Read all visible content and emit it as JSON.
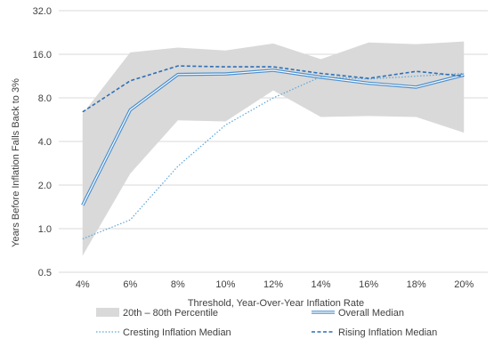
{
  "chart_data": {
    "type": "line",
    "xlabel": "Threshold,  Year-Over-Year  Inflation  Rate",
    "ylabel": "Years Before Inflation Falls Back to 3%",
    "y_scale": "log2",
    "ylim": [
      0.5,
      32.0
    ],
    "yticks": [
      "0.5",
      "1.0",
      "2.0",
      "4.0",
      "8.0",
      "16.0",
      "32.0"
    ],
    "yticks_values": [
      0.5,
      1,
      2,
      4,
      8,
      16,
      32
    ],
    "categories": [
      "4%",
      "6%",
      "8%",
      "10%",
      "12%",
      "14%",
      "16%",
      "18%",
      "20%"
    ],
    "grid": "horizontal",
    "legend_position": "bottom",
    "band": {
      "name": "20th – 80th Percentile",
      "lower": [
        0.65,
        2.4,
        5.6,
        5.5,
        9.0,
        5.9,
        6.0,
        5.9,
        4.6
      ],
      "upper": [
        6.2,
        16.5,
        17.8,
        17.0,
        19.0,
        14.8,
        19.3,
        18.8,
        19.6
      ],
      "color": "#d9d9d9"
    },
    "series": [
      {
        "name": "Overall Median",
        "style": "double-line",
        "color": "#4a8fce",
        "values": [
          1.45,
          6.6,
          11.6,
          11.7,
          12.4,
          11.1,
          10.1,
          9.5,
          11.5
        ]
      },
      {
        "name": "Cresting Inflation Median",
        "style": "dotted",
        "color": "#5ca5d9",
        "values": [
          0.85,
          1.15,
          2.7,
          5.2,
          8.0,
          11.2,
          10.8,
          11.3,
          11.8
        ]
      },
      {
        "name": "Rising Inflation Median",
        "style": "dashed",
        "color": "#2f6fb5",
        "values": [
          6.4,
          10.5,
          13.3,
          13.1,
          13.1,
          11.8,
          10.9,
          12.2,
          11.3
        ]
      }
    ]
  }
}
